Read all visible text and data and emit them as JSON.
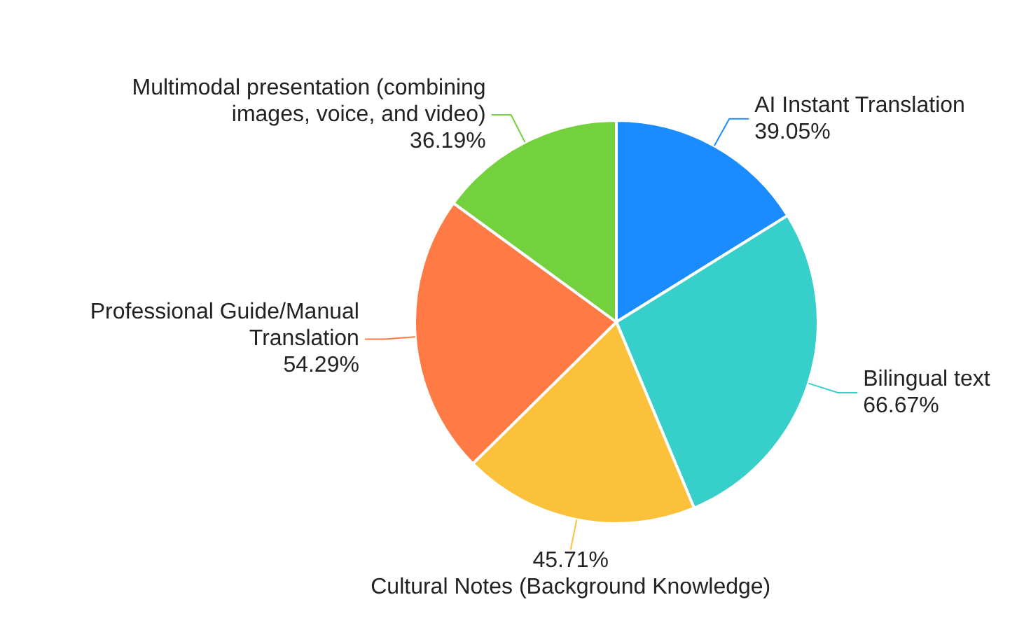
{
  "chart_data": {
    "type": "pie",
    "categories": [
      "AI Instant Translation",
      "Bilingual text",
      "Cultural Notes (Background Knowledge)",
      "Professional Guide/Manual Translation",
      "Multimodal presentation (combining images, voice, and video)"
    ],
    "values": [
      39.05,
      66.67,
      45.71,
      54.29,
      36.19
    ],
    "value_labels": [
      "39.05%",
      "66.67%",
      "45.71%",
      "54.29%",
      "36.19%"
    ],
    "colors": [
      "#1a8cff",
      "#36cfc9",
      "#fbc13b",
      "#ff7a45",
      "#73d13d"
    ],
    "legend": false
  }
}
